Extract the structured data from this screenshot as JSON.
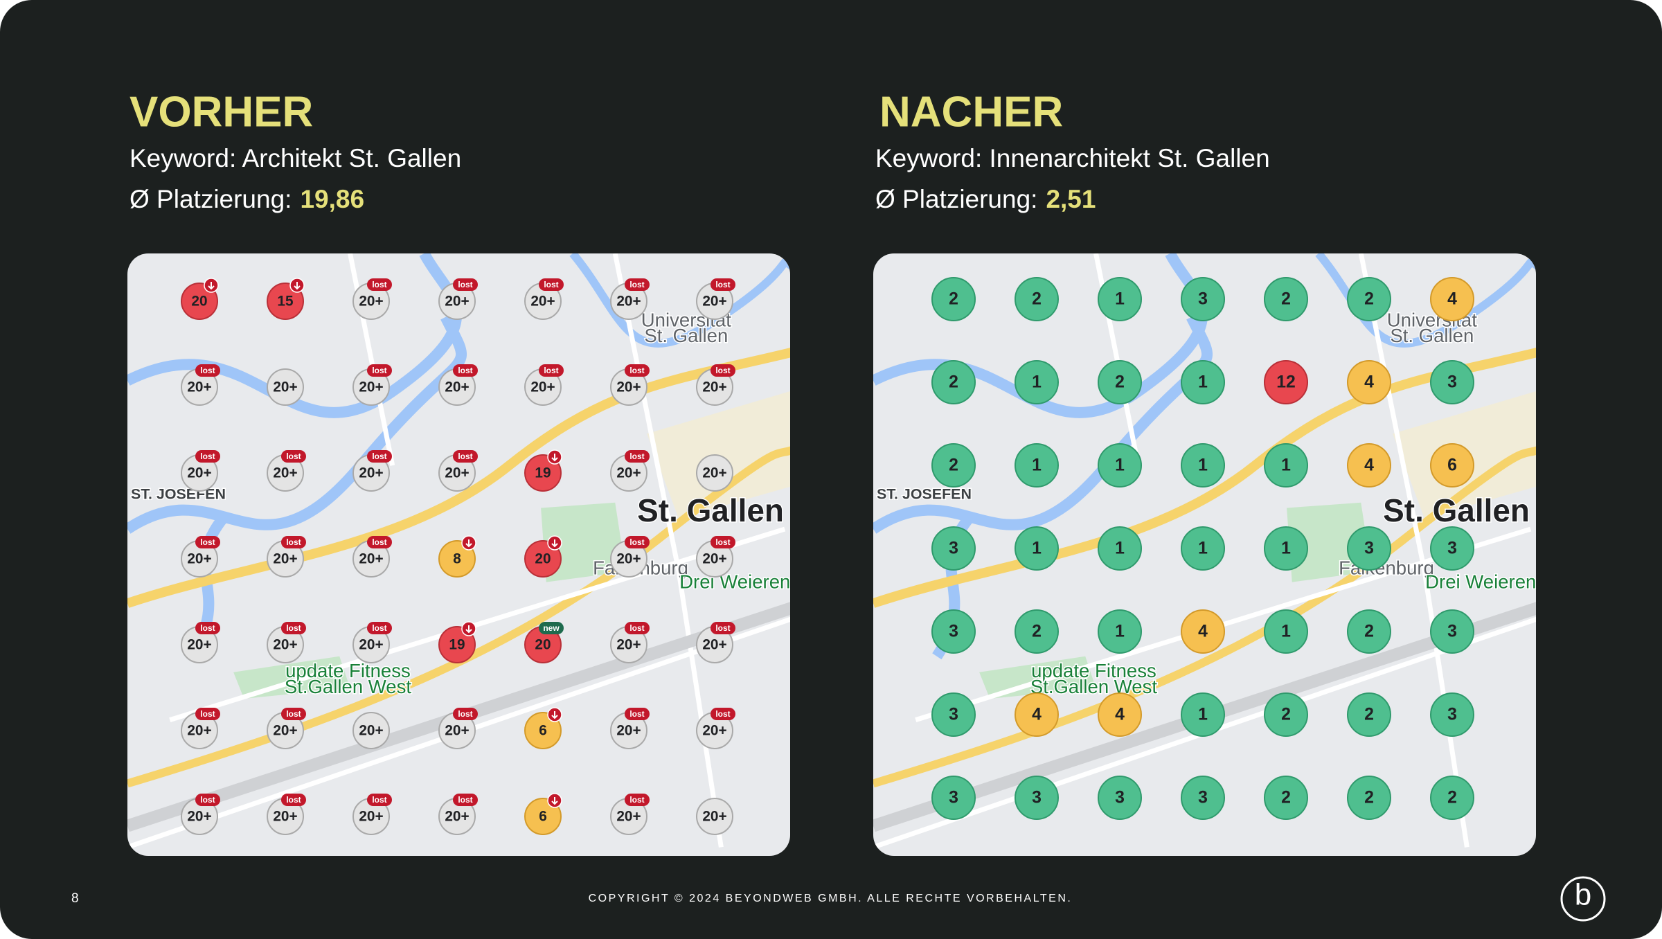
{
  "panels": [
    {
      "title": "VORHER",
      "keyword": "Keyword: Architekt St. Gallen",
      "rank_label": "Ø Platzierung:",
      "rank_value": "19,86",
      "map_labels": [
        "St. Gallen",
        "Falkenburg",
        "Drei Weieren",
        "ST. JOSEFEN",
        "update Fitness",
        "St.Gallen West",
        "Universitat",
        "St. Gallen"
      ],
      "markers": [
        {
          "label": "20",
          "color": "red",
          "drop": true
        },
        {
          "label": "15",
          "color": "red",
          "drop": true
        },
        {
          "label": "20+",
          "color": "gray",
          "badge": "lost"
        },
        {
          "label": "20+",
          "color": "gray",
          "badge": "lost"
        },
        {
          "label": "20+",
          "color": "gray",
          "badge": "lost"
        },
        {
          "label": "20+",
          "color": "gray",
          "badge": "lost"
        },
        {
          "label": "20+",
          "color": "gray",
          "badge": "lost"
        },
        {
          "label": "20+",
          "color": "gray",
          "badge": "lost"
        },
        {
          "label": "20+",
          "color": "gray"
        },
        {
          "label": "20+",
          "color": "gray",
          "badge": "lost"
        },
        {
          "label": "20+",
          "color": "gray",
          "badge": "lost"
        },
        {
          "label": "20+",
          "color": "gray",
          "badge": "lost"
        },
        {
          "label": "20+",
          "color": "gray",
          "badge": "lost"
        },
        {
          "label": "20+",
          "color": "gray",
          "badge": "lost"
        },
        {
          "label": "20+",
          "color": "gray",
          "badge": "lost"
        },
        {
          "label": "20+",
          "color": "gray",
          "badge": "lost"
        },
        {
          "label": "20+",
          "color": "gray",
          "badge": "lost"
        },
        {
          "label": "20+",
          "color": "gray",
          "badge": "lost"
        },
        {
          "label": "19",
          "color": "red",
          "drop": true
        },
        {
          "label": "20+",
          "color": "gray",
          "badge": "lost"
        },
        {
          "label": "20+",
          "color": "gray"
        },
        {
          "label": "20+",
          "color": "gray",
          "badge": "lost"
        },
        {
          "label": "20+",
          "color": "gray",
          "badge": "lost"
        },
        {
          "label": "20+",
          "color": "gray",
          "badge": "lost"
        },
        {
          "label": "8",
          "color": "orange",
          "drop": true
        },
        {
          "label": "20",
          "color": "red",
          "drop": true
        },
        {
          "label": "20+",
          "color": "gray",
          "badge": "lost"
        },
        {
          "label": "20+",
          "color": "gray",
          "badge": "lost"
        },
        {
          "label": "20+",
          "color": "gray",
          "badge": "lost"
        },
        {
          "label": "20+",
          "color": "gray",
          "badge": "lost"
        },
        {
          "label": "20+",
          "color": "gray",
          "badge": "lost"
        },
        {
          "label": "19",
          "color": "red",
          "drop": true
        },
        {
          "label": "20",
          "color": "red",
          "badge": "new"
        },
        {
          "label": "20+",
          "color": "gray",
          "badge": "lost"
        },
        {
          "label": "20+",
          "color": "gray",
          "badge": "lost"
        },
        {
          "label": "20+",
          "color": "gray",
          "badge": "lost"
        },
        {
          "label": "20+",
          "color": "gray",
          "badge": "lost"
        },
        {
          "label": "20+",
          "color": "gray"
        },
        {
          "label": "20+",
          "color": "gray",
          "badge": "lost"
        },
        {
          "label": "6",
          "color": "orange",
          "drop": true
        },
        {
          "label": "20+",
          "color": "gray",
          "badge": "lost"
        },
        {
          "label": "20+",
          "color": "gray",
          "badge": "lost"
        },
        {
          "label": "20+",
          "color": "gray",
          "badge": "lost"
        },
        {
          "label": "20+",
          "color": "gray",
          "badge": "lost"
        },
        {
          "label": "20+",
          "color": "gray",
          "badge": "lost"
        },
        {
          "label": "20+",
          "color": "gray",
          "badge": "lost"
        },
        {
          "label": "6",
          "color": "orange",
          "drop": true
        },
        {
          "label": "20+",
          "color": "gray",
          "badge": "lost"
        },
        {
          "label": "20+",
          "color": "gray"
        }
      ]
    },
    {
      "title": "NACHER",
      "keyword": "Keyword: Innenarchitekt St. Gallen",
      "rank_label": "Ø Platzierung:",
      "rank_value": "2,51",
      "map_labels": [
        "St. Gallen",
        "Falkenburg",
        "Drei Weieren",
        "ST. JOSEFEN",
        "update Fitness",
        "St.Gallen West",
        "Universitat",
        "St. Gallen"
      ],
      "markers": [
        {
          "label": "2",
          "color": "green"
        },
        {
          "label": "2",
          "color": "green"
        },
        {
          "label": "1",
          "color": "green"
        },
        {
          "label": "3",
          "color": "green"
        },
        {
          "label": "2",
          "color": "green"
        },
        {
          "label": "2",
          "color": "green"
        },
        {
          "label": "4",
          "color": "orange"
        },
        {
          "label": "2",
          "color": "green"
        },
        {
          "label": "1",
          "color": "green"
        },
        {
          "label": "2",
          "color": "green"
        },
        {
          "label": "1",
          "color": "green"
        },
        {
          "label": "12",
          "color": "red"
        },
        {
          "label": "4",
          "color": "orange"
        },
        {
          "label": "3",
          "color": "green"
        },
        {
          "label": "2",
          "color": "green"
        },
        {
          "label": "1",
          "color": "green"
        },
        {
          "label": "1",
          "color": "green"
        },
        {
          "label": "1",
          "color": "green"
        },
        {
          "label": "1",
          "color": "green"
        },
        {
          "label": "4",
          "color": "orange"
        },
        {
          "label": "6",
          "color": "orange"
        },
        {
          "label": "3",
          "color": "green"
        },
        {
          "label": "1",
          "color": "green"
        },
        {
          "label": "1",
          "color": "green"
        },
        {
          "label": "1",
          "color": "green"
        },
        {
          "label": "1",
          "color": "green"
        },
        {
          "label": "3",
          "color": "green"
        },
        {
          "label": "3",
          "color": "green"
        },
        {
          "label": "3",
          "color": "green"
        },
        {
          "label": "2",
          "color": "green"
        },
        {
          "label": "1",
          "color": "green"
        },
        {
          "label": "4",
          "color": "orange"
        },
        {
          "label": "1",
          "color": "green"
        },
        {
          "label": "2",
          "color": "green"
        },
        {
          "label": "3",
          "color": "green"
        },
        {
          "label": "3",
          "color": "green"
        },
        {
          "label": "4",
          "color": "orange"
        },
        {
          "label": "4",
          "color": "orange"
        },
        {
          "label": "1",
          "color": "green"
        },
        {
          "label": "2",
          "color": "green"
        },
        {
          "label": "2",
          "color": "green"
        },
        {
          "label": "3",
          "color": "green"
        },
        {
          "label": "3",
          "color": "green"
        },
        {
          "label": "3",
          "color": "green"
        },
        {
          "label": "3",
          "color": "green"
        },
        {
          "label": "3",
          "color": "green"
        },
        {
          "label": "2",
          "color": "green"
        },
        {
          "label": "2",
          "color": "green"
        },
        {
          "label": "2",
          "color": "green"
        }
      ]
    }
  ],
  "footer": {
    "page": "8",
    "copyright": "COPYRIGHT © 2024 BEYONDWEB GMBH. ALLE RECHTE VORBEHALTEN.",
    "logo": "b"
  }
}
